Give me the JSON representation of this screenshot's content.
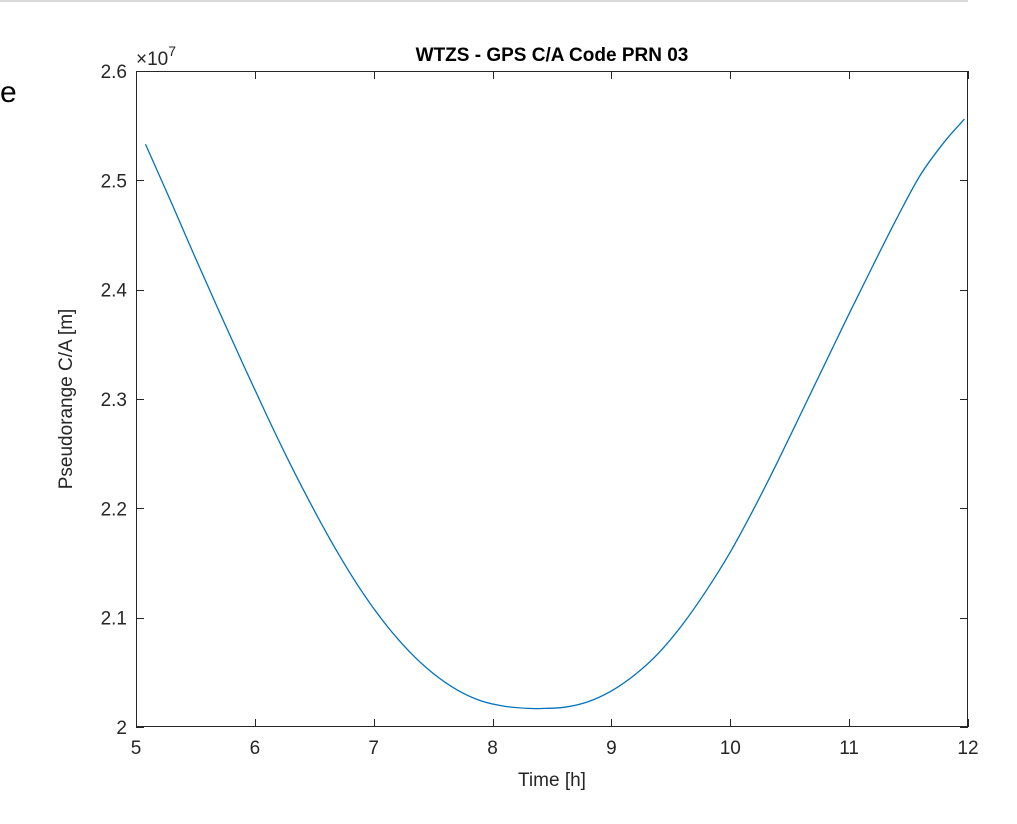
{
  "cropped_text": "e",
  "chart_data": {
    "type": "line",
    "title": "WTZS - GPS C/A Code PRN 03",
    "xlabel": "Time [h]",
    "ylabel": "Pseudorange C/A [m]",
    "y_exponent_prefix": "×10",
    "y_exponent_power": "7",
    "xlim": [
      5,
      12
    ],
    "ylim": [
      20000000.0,
      26000000.0
    ],
    "xticks": [
      5,
      6,
      7,
      8,
      9,
      10,
      11,
      12
    ],
    "yticks": [
      20000000.0,
      21000000.0,
      22000000.0,
      23000000.0,
      24000000.0,
      25000000.0,
      26000000.0
    ],
    "xtick_labels": [
      "5",
      "6",
      "7",
      "8",
      "9",
      "10",
      "11",
      "12"
    ],
    "ytick_labels": [
      "2",
      "2.1",
      "2.2",
      "2.3",
      "2.4",
      "2.5",
      "2.6"
    ],
    "grid": false,
    "box": true,
    "series_color": "#0072bd",
    "axis_color": "#262626",
    "x": [
      5.08,
      5.3,
      5.5,
      5.7,
      5.9,
      6.1,
      6.3,
      6.5,
      6.7,
      6.9,
      7.1,
      7.3,
      7.5,
      7.7,
      7.9,
      8.1,
      8.3,
      8.43,
      8.6,
      8.8,
      9.0,
      9.2,
      9.4,
      9.6,
      9.8,
      10.0,
      10.2,
      10.4,
      10.6,
      10.8,
      11.0,
      11.2,
      11.4,
      11.6,
      11.8,
      11.97
    ],
    "y": [
      25330000,
      24790000,
      24290000,
      23800000,
      23320000,
      22850000,
      22400000,
      21980000,
      21590000,
      21240000,
      20940000,
      20690000,
      20490000,
      20340000,
      20240000,
      20190000,
      20170000,
      20170000,
      20180000,
      20230000,
      20330000,
      20480000,
      20680000,
      20940000,
      21250000,
      21600000,
      22000000,
      22430000,
      22880000,
      23330000,
      23780000,
      24220000,
      24650000,
      25050000,
      25350000,
      25560000
    ]
  }
}
